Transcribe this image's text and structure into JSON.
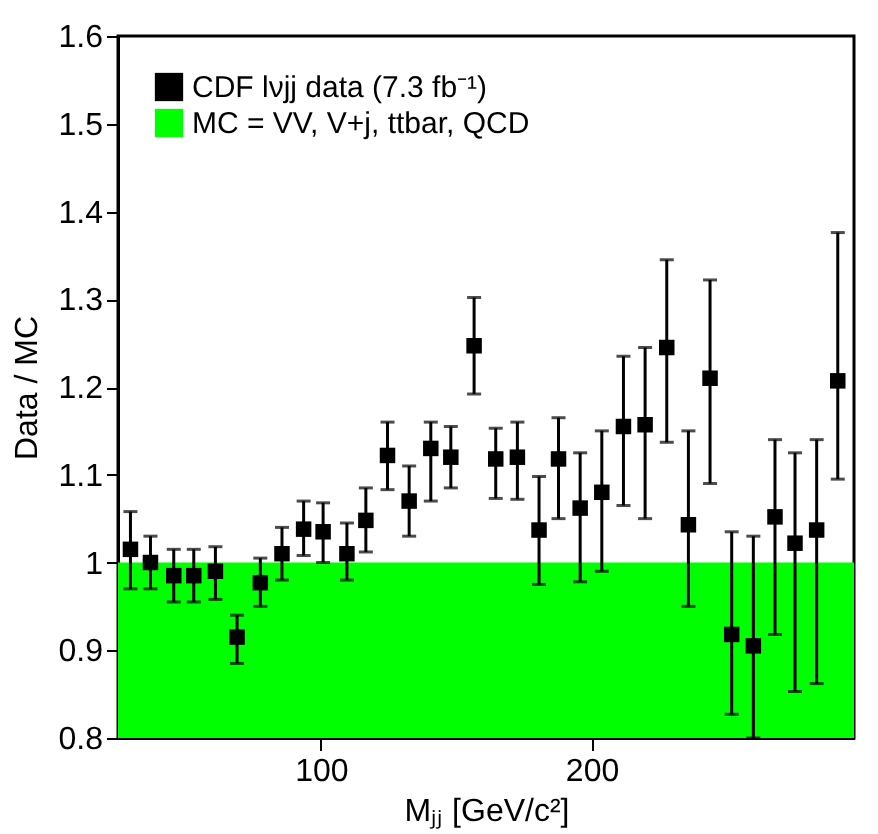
{
  "chart_data": {
    "type": "scatter",
    "xlabel": "Mⱼⱼ [GeV/c²]",
    "ylabel": "Data / MC",
    "xlim": [
      25,
      297
    ],
    "xticks": [
      100,
      200
    ],
    "ylim": [
      0.8,
      1.6
    ],
    "yticks": [
      0.8,
      0.9,
      1,
      1.1,
      1.2,
      1.3,
      1.4,
      1.5,
      1.6
    ],
    "legend": "top left",
    "grid": false,
    "series": [
      {
        "name": "CDF lνjj  data (7.3 fb⁻¹)",
        "color": "#000000",
        "marker": "square",
        "x": [
          29.6,
          37,
          45.6,
          53,
          61,
          69,
          77.6,
          85.6,
          93.6,
          100.8,
          109.6,
          116.6,
          124.6,
          132.6,
          140.6,
          148,
          156.6,
          164.6,
          172.6,
          180.6,
          187.8,
          195.8,
          203.8,
          211.8,
          219.8,
          227.8,
          235.8,
          243.8,
          251.8,
          259.8,
          267.8,
          275.2,
          283.2,
          291
        ],
        "values": [
          1.015,
          1.0,
          0.985,
          0.985,
          0.99,
          0.915,
          0.977,
          1.01,
          1.038,
          1.035,
          1.01,
          1.048,
          1.122,
          1.07,
          1.13,
          1.12,
          1.247,
          1.118,
          1.12,
          1.037,
          1.118,
          1.062,
          1.08,
          1.155,
          1.157,
          1.245,
          1.043,
          1.21,
          0.918,
          0.905,
          1.052,
          1.022,
          1.037,
          1.207
        ],
        "errors": [
          [
            0.97,
            1.058
          ],
          [
            0.97,
            1.03
          ],
          [
            0.955,
            1.015
          ],
          [
            0.955,
            1.015
          ],
          [
            0.958,
            1.018
          ],
          [
            0.885,
            0.94
          ],
          [
            0.95,
            1.005
          ],
          [
            0.98,
            1.04
          ],
          [
            1.008,
            1.07
          ],
          [
            1.0,
            1.068
          ],
          [
            0.98,
            1.045
          ],
          [
            1.012,
            1.085
          ],
          [
            1.083,
            1.16
          ],
          [
            1.03,
            1.11
          ],
          [
            1.07,
            1.16
          ],
          [
            1.085,
            1.155
          ],
          [
            1.192,
            1.302
          ],
          [
            1.073,
            1.153
          ],
          [
            1.072,
            1.16
          ],
          [
            0.975,
            1.098
          ],
          [
            1.05,
            1.165
          ],
          [
            0.978,
            1.125
          ],
          [
            0.99,
            1.15
          ],
          [
            1.065,
            1.235
          ],
          [
            1.05,
            1.245
          ],
          [
            1.137,
            1.345
          ],
          [
            0.95,
            1.15
          ],
          [
            1.09,
            1.322
          ],
          [
            0.827,
            1.035
          ],
          [
            0.8,
            1.03
          ],
          [
            0.918,
            1.14
          ],
          [
            0.853,
            1.125
          ],
          [
            0.862,
            1.14
          ],
          [
            1.095,
            1.376
          ]
        ]
      },
      {
        "name": "MC = VV, V+j, ttbar, QCD",
        "type": "area",
        "color": "#00ff00",
        "x": [
          25,
          297
        ],
        "values": [
          1,
          1
        ]
      }
    ]
  }
}
